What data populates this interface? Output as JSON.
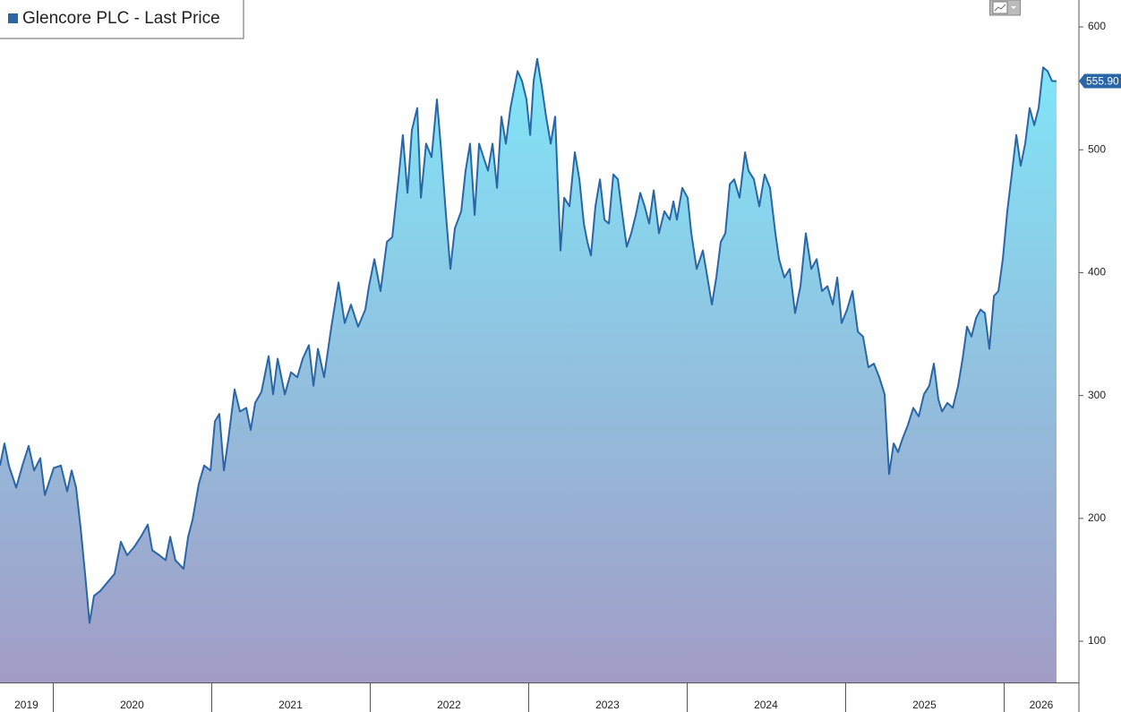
{
  "chart_data": {
    "type": "area",
    "x": [
      2019.667,
      2019.695,
      2019.723,
      2019.769,
      2019.808,
      2019.848,
      2019.882,
      2019.921,
      2019.95,
      2020.006,
      2020.051,
      2020.091,
      2020.119,
      2020.147,
      2020.176,
      2020.204,
      2020.232,
      2020.26,
      2020.3,
      2020.345,
      2020.39,
      2020.43,
      2020.469,
      2020.515,
      2020.56,
      2020.599,
      2020.628,
      2020.673,
      2020.712,
      2020.741,
      2020.774,
      2020.825,
      2020.854,
      2020.882,
      2020.921,
      2020.955,
      2020.995,
      2021.023,
      2021.051,
      2021.08,
      2021.108,
      2021.147,
      2021.181,
      2021.221,
      2021.249,
      2021.277,
      2021.317,
      2021.362,
      2021.39,
      2021.419,
      2021.464,
      2021.503,
      2021.543,
      2021.577,
      2021.616,
      2021.645,
      2021.673,
      2021.712,
      2021.758,
      2021.803,
      2021.842,
      2021.882,
      2021.927,
      2021.972,
      2021.995,
      2022.029,
      2022.068,
      2022.108,
      2022.142,
      2022.181,
      2022.209,
      2022.238,
      2022.266,
      2022.3,
      2022.323,
      2022.356,
      2022.39,
      2022.424,
      2022.447,
      2022.481,
      2022.509,
      2022.537,
      2022.577,
      2022.605,
      2022.633,
      2022.662,
      2022.69,
      2022.718,
      2022.746,
      2022.775,
      2022.803,
      2022.831,
      2022.859,
      2022.888,
      2022.933,
      2022.961,
      2022.989,
      2023.012,
      2023.034,
      2023.057,
      2023.085,
      2023.113,
      2023.142,
      2023.17,
      2023.204,
      2023.227,
      2023.26,
      2023.294,
      2023.323,
      2023.351,
      2023.373,
      2023.396,
      2023.424,
      2023.453,
      2023.481,
      2023.509,
      2023.537,
      2023.566,
      2023.594,
      2023.622,
      2023.65,
      2023.679,
      2023.707,
      2023.735,
      2023.763,
      2023.792,
      2023.825,
      2023.859,
      2023.893,
      2023.916,
      2023.938,
      2023.972,
      2024.006,
      2024.029,
      2024.063,
      2024.102,
      2024.131,
      2024.159,
      2024.187,
      2024.215,
      2024.244,
      2024.272,
      2024.3,
      2024.334,
      2024.368,
      2024.39,
      2024.424,
      2024.458,
      2024.492,
      2024.526,
      2024.56,
      2024.583,
      2024.616,
      2024.65,
      2024.684,
      2024.718,
      2024.752,
      2024.786,
      2024.82,
      2024.854,
      2024.888,
      2024.922,
      2024.95,
      2024.978,
      2025.012,
      2025.046,
      2025.08,
      2025.113,
      2025.147,
      2025.181,
      2025.215,
      2025.249,
      2025.277,
      2025.306,
      2025.334,
      2025.362,
      2025.396,
      2025.43,
      2025.464,
      2025.497,
      2025.531,
      2025.56,
      2025.588,
      2025.611,
      2025.645,
      2025.679,
      2025.713,
      2025.741,
      2025.769,
      2025.797,
      2025.826,
      2025.854,
      2025.882,
      2025.91,
      2025.939,
      2025.967,
      2025.995,
      2026.023,
      2026.051,
      2026.08,
      2026.108,
      2026.136,
      2026.164,
      2026.193,
      2026.221,
      2026.249,
      2026.277,
      2026.305,
      2026.334
    ],
    "series": [
      {
        "name": "Glencore PLC - Last Price",
        "color": "#2a66a6",
        "values": [
          243,
          261,
          243,
          225,
          243,
          259,
          239,
          249,
          219,
          241,
          243,
          222,
          239,
          225,
          192,
          155,
          115,
          137,
          141,
          148,
          155,
          181,
          170,
          177,
          186,
          195,
          174,
          170,
          166,
          185,
          166,
          159,
          185,
          199,
          228,
          243,
          239,
          279,
          285,
          239,
          265,
          305,
          287,
          290,
          272,
          294,
          303,
          332,
          301,
          330,
          301,
          319,
          315,
          330,
          341,
          308,
          338,
          315,
          356,
          392,
          359,
          374,
          356,
          370,
          389,
          411,
          385,
          425,
          429,
          476,
          512,
          465,
          516,
          534,
          461,
          505,
          494,
          541,
          505,
          447,
          403,
          436,
          450,
          483,
          505,
          447,
          505,
          494,
          483,
          505,
          469,
          527,
          505,
          534,
          564,
          556,
          541,
          512,
          556,
          574,
          552,
          527,
          505,
          527,
          418,
          461,
          454,
          498,
          476,
          440,
          425,
          414,
          454,
          476,
          443,
          440,
          480,
          476,
          447,
          421,
          432,
          447,
          465,
          454,
          440,
          467,
          432,
          450,
          443,
          458,
          443,
          469,
          461,
          432,
          403,
          418,
          396,
          374,
          396,
          425,
          432,
          472,
          476,
          461,
          498,
          483,
          476,
          454,
          480,
          469,
          432,
          411,
          396,
          403,
          367,
          389,
          432,
          403,
          411,
          385,
          389,
          374,
          396,
          359,
          370,
          385,
          352,
          348,
          323,
          326,
          315,
          301,
          236,
          261,
          254,
          265,
          276,
          290,
          283,
          301,
          308,
          326,
          297,
          287,
          294,
          290,
          308,
          330,
          356,
          348,
          363,
          370,
          367,
          338,
          381,
          385,
          411,
          450,
          480,
          512,
          487,
          505,
          534,
          520,
          534,
          567,
          564,
          556,
          555.9
        ],
        "value_labels": [
          null,
          null,
          null,
          null,
          null,
          null,
          null,
          null,
          null,
          null,
          null,
          null,
          null,
          null,
          null,
          null,
          null,
          null,
          null,
          null,
          null,
          null,
          null,
          null,
          null,
          null,
          null,
          null,
          null,
          null,
          null,
          null,
          null,
          null,
          null,
          null,
          null,
          null,
          null,
          null,
          null,
          null,
          null,
          null,
          null,
          null,
          null,
          null,
          null,
          null,
          null,
          null,
          null,
          null,
          null,
          null,
          null,
          null,
          null,
          null,
          null,
          null,
          null,
          null,
          null,
          null,
          null,
          null,
          null,
          null,
          null,
          null,
          null,
          null,
          null,
          null,
          null,
          null,
          null,
          null,
          null,
          null,
          null,
          null,
          null,
          null,
          null,
          null,
          null,
          null,
          null,
          null,
          null,
          null,
          null,
          null,
          null,
          null,
          null,
          null,
          null,
          null,
          null,
          null,
          null,
          null,
          null,
          null,
          null,
          null,
          null,
          null,
          null,
          null,
          null,
          null,
          null,
          null,
          null,
          null,
          null,
          null,
          null,
          null,
          null,
          null,
          null,
          null,
          null,
          null,
          null,
          null,
          null,
          null,
          null,
          null,
          null,
          null,
          null,
          null,
          null,
          null,
          null,
          null,
          null,
          null,
          null,
          null,
          null,
          null,
          null,
          null,
          null,
          null,
          null,
          null,
          null,
          null,
          null,
          null,
          null,
          null,
          null,
          null,
          null,
          null,
          null,
          null,
          null,
          null,
          null,
          null,
          null,
          null,
          null,
          null,
          null,
          null,
          null,
          null,
          null,
          null,
          null,
          null,
          null,
          null,
          null,
          null,
          null,
          null,
          null,
          null,
          null,
          null,
          null,
          null,
          null,
          null,
          null,
          null,
          null,
          null,
          null,
          null,
          null,
          null,
          null,
          null,
          "555.90"
        ]
      }
    ],
    "xlim": [
      2019.667,
      2026.475
    ],
    "xticks": [
      2019,
      2020,
      2021,
      2022,
      2023,
      2024,
      2025,
      2026
    ],
    "ylim": [
      66.5,
      621.9
    ],
    "yticks": [
      100,
      200,
      300,
      400,
      500,
      600
    ],
    "grid": false
  }
}
